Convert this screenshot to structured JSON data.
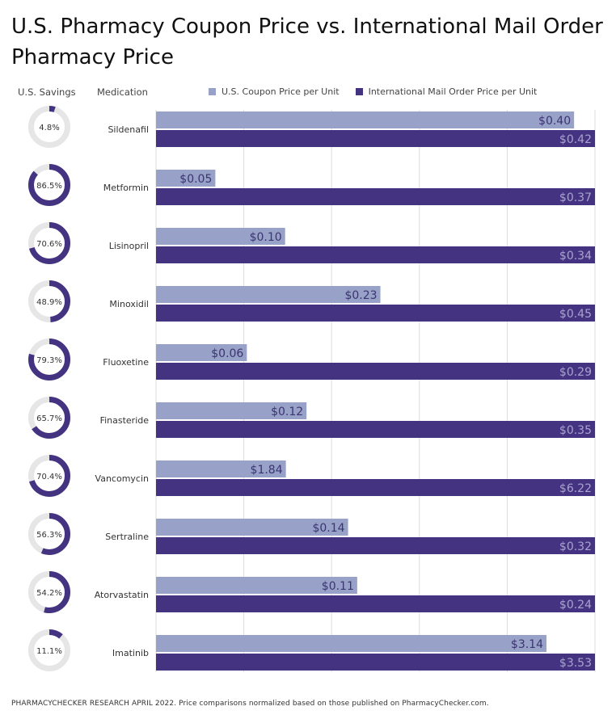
{
  "title": "U.S. Pharmacy Coupon Price vs. International Mail Order Pharmacy Price",
  "headers": {
    "savings": "U.S. Savings",
    "medication": "Medication"
  },
  "legend": [
    {
      "label": "U.S. Coupon Price per Unit",
      "color": "#98a2c8"
    },
    {
      "label": "International Mail Order Price per Unit",
      "color": "#443380"
    }
  ],
  "footer": "PHARMACYCHECKER RESEARCH APRIL 2022. Price comparisons normalized based on those published on PharmacyChecker.com.",
  "colors": {
    "donut_fill": "#443380",
    "donut_track": "#e6e6e6",
    "grid": "#dddddd"
  },
  "chart_data": {
    "type": "bar",
    "orientation": "horizontal",
    "scale": "per-category, relative to international price",
    "categories": [
      "Sildenafil",
      "Metformin",
      "Lisinopril",
      "Minoxidil",
      "Fluoxetine",
      "Finasteride",
      "Vancomycin",
      "Sertraline",
      "Atorvastatin",
      "Imatinib"
    ],
    "series": [
      {
        "name": "U.S. Coupon Price per Unit",
        "values": [
          0.4,
          0.05,
          0.1,
          0.23,
          0.06,
          0.12,
          1.84,
          0.14,
          0.11,
          3.14
        ],
        "labels": [
          "$0.40",
          "$0.05",
          "$0.10",
          "$0.23",
          "$0.06",
          "$0.12",
          "$1.84",
          "$0.14",
          "$0.11",
          "$3.14"
        ]
      },
      {
        "name": "International Mail Order Price per Unit",
        "values": [
          0.42,
          0.37,
          0.34,
          0.45,
          0.29,
          0.35,
          6.22,
          0.32,
          0.24,
          3.53
        ],
        "labels": [
          "$0.42",
          "$0.37",
          "$0.34",
          "$0.45",
          "$0.29",
          "$0.35",
          "$6.22",
          "$0.32",
          "$0.24",
          "$3.53"
        ]
      }
    ],
    "savings": {
      "name": "U.S. Savings",
      "values": [
        4.8,
        86.5,
        70.6,
        48.9,
        79.3,
        65.7,
        70.4,
        56.3,
        54.2,
        11.1
      ],
      "labels": [
        "4.8%",
        "86.5%",
        "70.6%",
        "48.9%",
        "79.3%",
        "65.7%",
        "70.4%",
        "56.3%",
        "54.2%",
        "11.1%"
      ]
    },
    "grid": true
  }
}
